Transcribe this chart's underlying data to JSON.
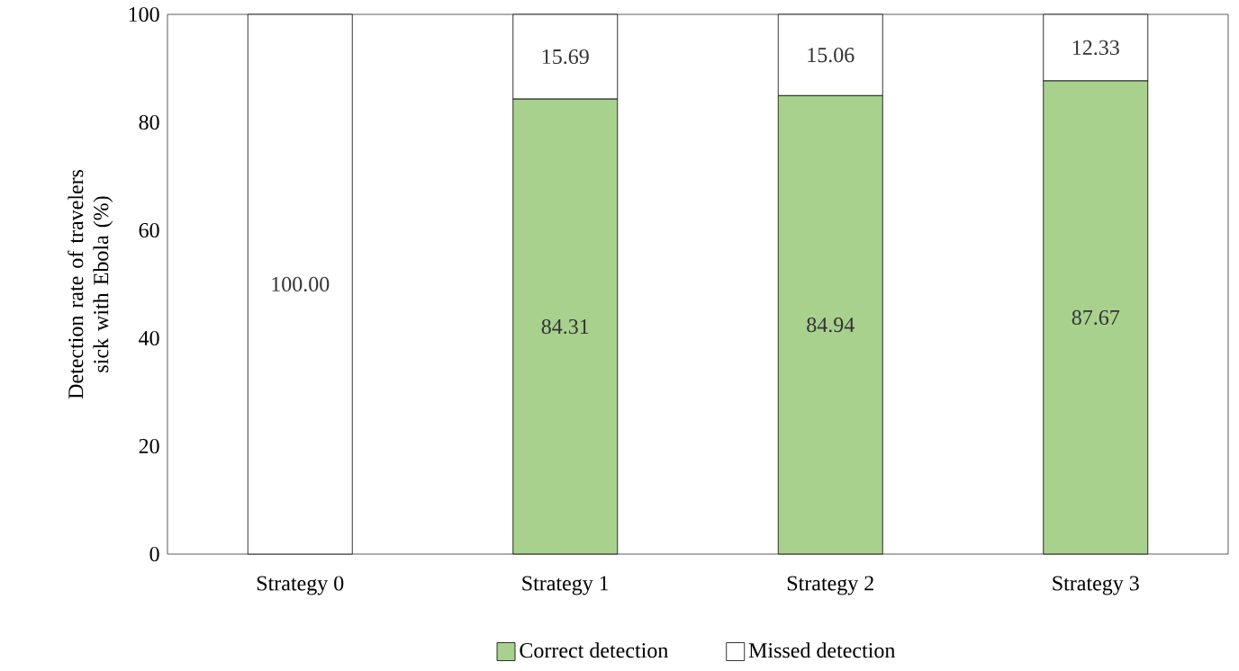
{
  "chart_data": {
    "type": "bar",
    "stacked": true,
    "ylabel": "Detection rate of travelers sick with Ebola (%)",
    "categories": [
      "Strategy 0",
      "Strategy 1",
      "Strategy 2",
      "Strategy 3"
    ],
    "series": [
      {
        "name": "Correct detection",
        "color": "#a9d18e",
        "values": [
          0,
          84.31,
          84.94,
          87.67
        ],
        "value_labels": [
          null,
          "84.31",
          "84.94",
          "87.67"
        ]
      },
      {
        "name": "Missed detection",
        "color": "#ffffff",
        "values": [
          100,
          15.69,
          15.06,
          12.33
        ],
        "value_labels": [
          "100.00",
          "15.69",
          "15.06",
          "12.33"
        ]
      }
    ],
    "ylim": [
      0,
      100
    ],
    "yticks": [
      0,
      20,
      40,
      60,
      80,
      100
    ],
    "grid": false,
    "legend": "bottom"
  }
}
